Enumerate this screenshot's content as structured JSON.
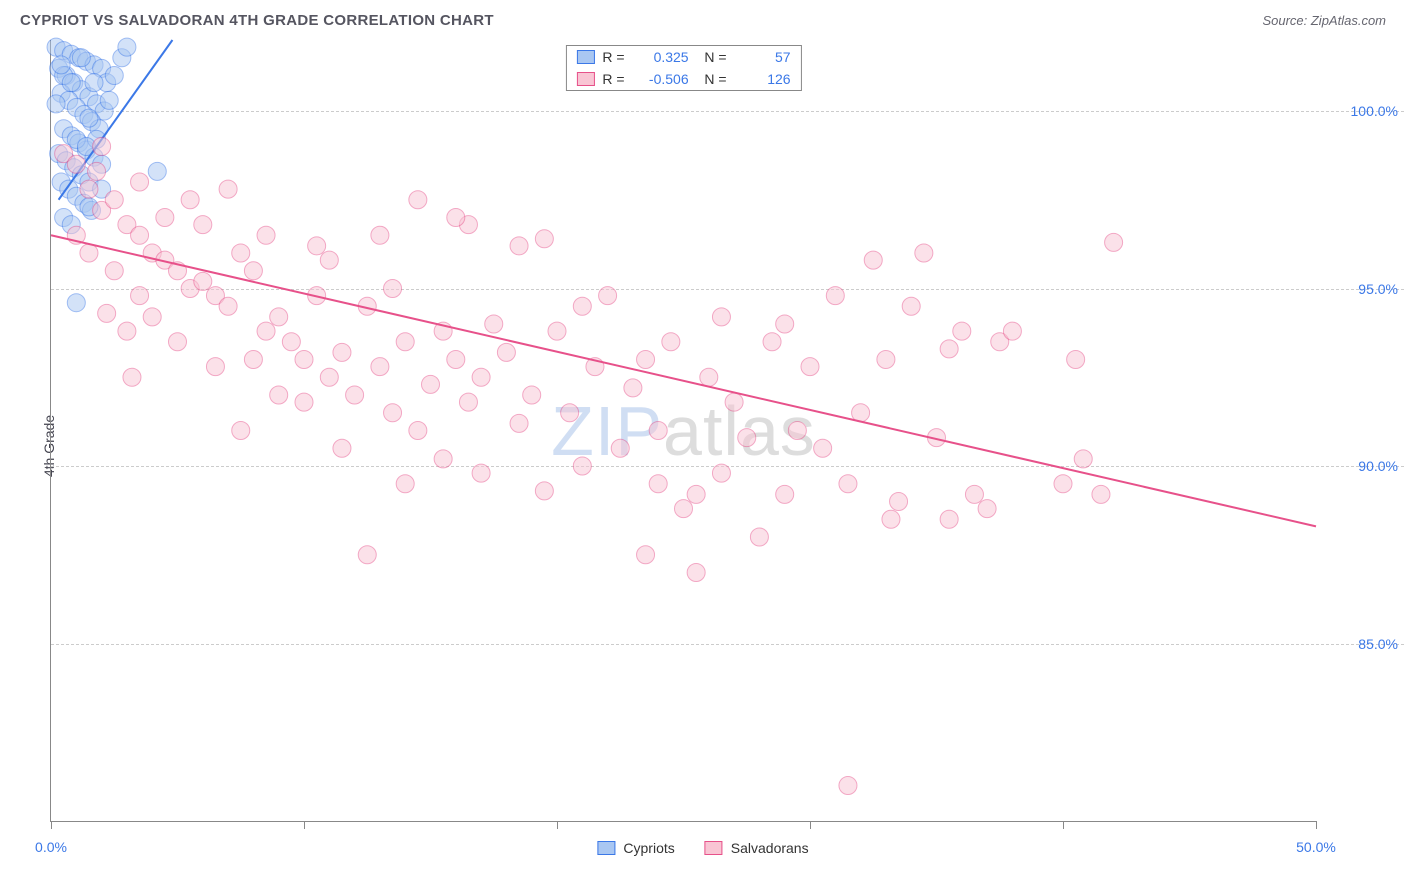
{
  "title": "CYPRIOT VS SALVADORAN 4TH GRADE CORRELATION CHART",
  "source": "Source: ZipAtlas.com",
  "ylabel": "4th Grade",
  "watermark_a": "ZIP",
  "watermark_b": "atlas",
  "chart": {
    "type": "scatter",
    "background_color": "#ffffff",
    "grid_color": "#cccccc",
    "axis_color": "#888888",
    "xlim": [
      0,
      50
    ],
    "ylim": [
      80,
      102
    ],
    "xticks": [
      0,
      10,
      20,
      30,
      40,
      50
    ],
    "xtick_labels": {
      "0": "0.0%",
      "50": "50.0%"
    },
    "yticks": [
      85,
      90,
      95,
      100
    ],
    "ytick_labels": {
      "85": "85.0%",
      "90": "90.0%",
      "95": "95.0%",
      "100": "100.0%"
    },
    "ytick_color": "#3b78e7",
    "xtick_color": "#3b78e7",
    "marker_radius": 9,
    "marker_opacity": 0.5,
    "line_width": 2,
    "series": [
      {
        "name": "Cypriots",
        "color_fill": "#a9c7f2",
        "color_stroke": "#3b78e7",
        "r": "0.325",
        "n": "57",
        "trend": {
          "x1": 0.3,
          "y1": 97.5,
          "x2": 4.8,
          "y2": 102.0
        },
        "points": [
          [
            0.2,
            101.8
          ],
          [
            0.5,
            101.7
          ],
          [
            0.8,
            101.6
          ],
          [
            1.1,
            101.5
          ],
          [
            1.4,
            101.4
          ],
          [
            1.7,
            101.3
          ],
          [
            2.0,
            101.2
          ],
          [
            0.3,
            101.2
          ],
          [
            0.6,
            101.0
          ],
          [
            0.9,
            100.8
          ],
          [
            1.2,
            100.6
          ],
          [
            1.5,
            100.4
          ],
          [
            1.8,
            100.2
          ],
          [
            2.1,
            100.0
          ],
          [
            0.4,
            100.5
          ],
          [
            0.7,
            100.3
          ],
          [
            1.0,
            100.1
          ],
          [
            1.3,
            99.9
          ],
          [
            1.6,
            99.7
          ],
          [
            1.9,
            99.5
          ],
          [
            2.2,
            100.8
          ],
          [
            0.5,
            99.5
          ],
          [
            0.8,
            99.3
          ],
          [
            1.1,
            99.1
          ],
          [
            1.4,
            98.9
          ],
          [
            1.7,
            98.7
          ],
          [
            2.0,
            98.5
          ],
          [
            2.5,
            101.0
          ],
          [
            0.3,
            98.8
          ],
          [
            0.6,
            98.6
          ],
          [
            0.9,
            98.4
          ],
          [
            1.2,
            98.2
          ],
          [
            1.5,
            98.0
          ],
          [
            2.8,
            101.5
          ],
          [
            3.0,
            101.8
          ],
          [
            0.4,
            98.0
          ],
          [
            0.7,
            97.8
          ],
          [
            1.0,
            97.6
          ],
          [
            1.3,
            97.4
          ],
          [
            1.6,
            97.2
          ],
          [
            1.0,
            99.2
          ],
          [
            1.5,
            99.8
          ],
          [
            4.2,
            98.3
          ],
          [
            0.5,
            97.0
          ],
          [
            0.8,
            96.8
          ],
          [
            1.8,
            99.2
          ],
          [
            2.3,
            100.3
          ],
          [
            1.5,
            97.3
          ],
          [
            2.0,
            97.8
          ],
          [
            0.2,
            100.2
          ],
          [
            0.5,
            101.0
          ],
          [
            0.8,
            100.8
          ],
          [
            1.0,
            94.6
          ],
          [
            1.2,
            101.5
          ],
          [
            1.4,
            99.0
          ],
          [
            0.4,
            101.3
          ],
          [
            1.7,
            100.8
          ]
        ]
      },
      {
        "name": "Salvadorans",
        "color_fill": "#f9c5d4",
        "color_stroke": "#e7518a",
        "r": "-0.506",
        "n": "126",
        "trend": {
          "x1": 0.0,
          "y1": 96.5,
          "x2": 50.0,
          "y2": 88.3
        },
        "points": [
          [
            0.5,
            98.8
          ],
          [
            1.0,
            98.5
          ],
          [
            1.5,
            97.8
          ],
          [
            2.0,
            97.2
          ],
          [
            2.5,
            97.5
          ],
          [
            3.0,
            96.8
          ],
          [
            3.5,
            96.5
          ],
          [
            4.0,
            96.0
          ],
          [
            4.5,
            95.8
          ],
          [
            5.0,
            95.5
          ],
          [
            5.5,
            95.0
          ],
          [
            6.0,
            95.2
          ],
          [
            6.5,
            94.8
          ],
          [
            7.0,
            94.5
          ],
          [
            7.5,
            96.0
          ],
          [
            8.0,
            95.5
          ],
          [
            8.5,
            93.8
          ],
          [
            9.0,
            94.2
          ],
          [
            9.5,
            93.5
          ],
          [
            10.0,
            93.0
          ],
          [
            10.5,
            94.8
          ],
          [
            11.0,
            92.5
          ],
          [
            11.5,
            93.2
          ],
          [
            12.0,
            92.0
          ],
          [
            12.5,
            94.5
          ],
          [
            13.0,
            92.8
          ],
          [
            13.5,
            91.5
          ],
          [
            14.0,
            93.5
          ],
          [
            14.5,
            91.0
          ],
          [
            15.0,
            92.3
          ],
          [
            15.5,
            93.8
          ],
          [
            16.0,
            93.0
          ],
          [
            16.5,
            91.8
          ],
          [
            17.0,
            92.5
          ],
          [
            17.5,
            94.0
          ],
          [
            18.0,
            93.2
          ],
          [
            18.5,
            96.2
          ],
          [
            19.0,
            92.0
          ],
          [
            19.5,
            96.4
          ],
          [
            20.0,
            93.8
          ],
          [
            20.5,
            91.5
          ],
          [
            21.0,
            94.5
          ],
          [
            21.5,
            92.8
          ],
          [
            22.0,
            94.8
          ],
          [
            22.5,
            90.5
          ],
          [
            23.0,
            92.2
          ],
          [
            23.5,
            93.0
          ],
          [
            24.0,
            91.0
          ],
          [
            24.5,
            93.5
          ],
          [
            25.0,
            88.8
          ],
          [
            25.5,
            89.2
          ],
          [
            26.0,
            92.5
          ],
          [
            26.5,
            94.2
          ],
          [
            27.0,
            91.8
          ],
          [
            27.5,
            90.8
          ],
          [
            28.0,
            88.0
          ],
          [
            28.5,
            93.5
          ],
          [
            29.0,
            94.0
          ],
          [
            29.5,
            91.0
          ],
          [
            30.0,
            92.8
          ],
          [
            30.5,
            90.5
          ],
          [
            31.0,
            94.8
          ],
          [
            31.5,
            89.5
          ],
          [
            32.0,
            91.5
          ],
          [
            32.5,
            95.8
          ],
          [
            33.0,
            93.0
          ],
          [
            33.5,
            89.0
          ],
          [
            34.0,
            94.5
          ],
          [
            34.5,
            96.0
          ],
          [
            35.0,
            90.8
          ],
          [
            35.5,
            88.5
          ],
          [
            36.0,
            93.8
          ],
          [
            36.5,
            89.2
          ],
          [
            37.0,
            88.8
          ],
          [
            37.5,
            93.5
          ],
          [
            38.0,
            93.8
          ],
          [
            10.0,
            91.8
          ],
          [
            11.0,
            95.8
          ],
          [
            12.5,
            87.5
          ],
          [
            23.5,
            87.5
          ],
          [
            25.5,
            87.0
          ],
          [
            31.5,
            81.0
          ],
          [
            14.5,
            97.5
          ],
          [
            16.5,
            96.8
          ],
          [
            33.2,
            88.5
          ],
          [
            35.5,
            93.3
          ],
          [
            40.0,
            89.5
          ],
          [
            40.5,
            93.0
          ],
          [
            40.8,
            90.2
          ],
          [
            41.5,
            89.2
          ],
          [
            42.0,
            96.3
          ],
          [
            5.5,
            97.5
          ],
          [
            7.0,
            97.8
          ],
          [
            8.5,
            96.5
          ],
          [
            13.5,
            95.0
          ],
          [
            15.5,
            90.2
          ],
          [
            17.0,
            89.8
          ],
          [
            19.5,
            89.3
          ],
          [
            21.0,
            90.0
          ],
          [
            24.0,
            89.5
          ],
          [
            29.0,
            89.2
          ],
          [
            3.0,
            93.8
          ],
          [
            4.0,
            94.2
          ],
          [
            6.5,
            92.8
          ],
          [
            9.0,
            92.0
          ],
          [
            2.0,
            99.0
          ],
          [
            1.0,
            96.5
          ],
          [
            1.5,
            96.0
          ],
          [
            2.5,
            95.5
          ],
          [
            3.5,
            98.0
          ],
          [
            4.5,
            97.0
          ],
          [
            6.0,
            96.8
          ],
          [
            8.0,
            93.0
          ],
          [
            10.5,
            96.2
          ],
          [
            13.0,
            96.5
          ],
          [
            16.0,
            97.0
          ],
          [
            3.5,
            94.8
          ],
          [
            5.0,
            93.5
          ],
          [
            7.5,
            91.0
          ],
          [
            11.5,
            90.5
          ],
          [
            14.0,
            89.5
          ],
          [
            18.5,
            91.2
          ],
          [
            26.5,
            89.8
          ],
          [
            1.8,
            98.3
          ],
          [
            2.2,
            94.3
          ],
          [
            3.2,
            92.5
          ]
        ]
      }
    ]
  },
  "legend_bottom": [
    {
      "label": "Cypriots",
      "fill": "#a9c7f2",
      "stroke": "#3b78e7"
    },
    {
      "label": "Salvadorans",
      "fill": "#f9c5d4",
      "stroke": "#e7518a"
    }
  ]
}
